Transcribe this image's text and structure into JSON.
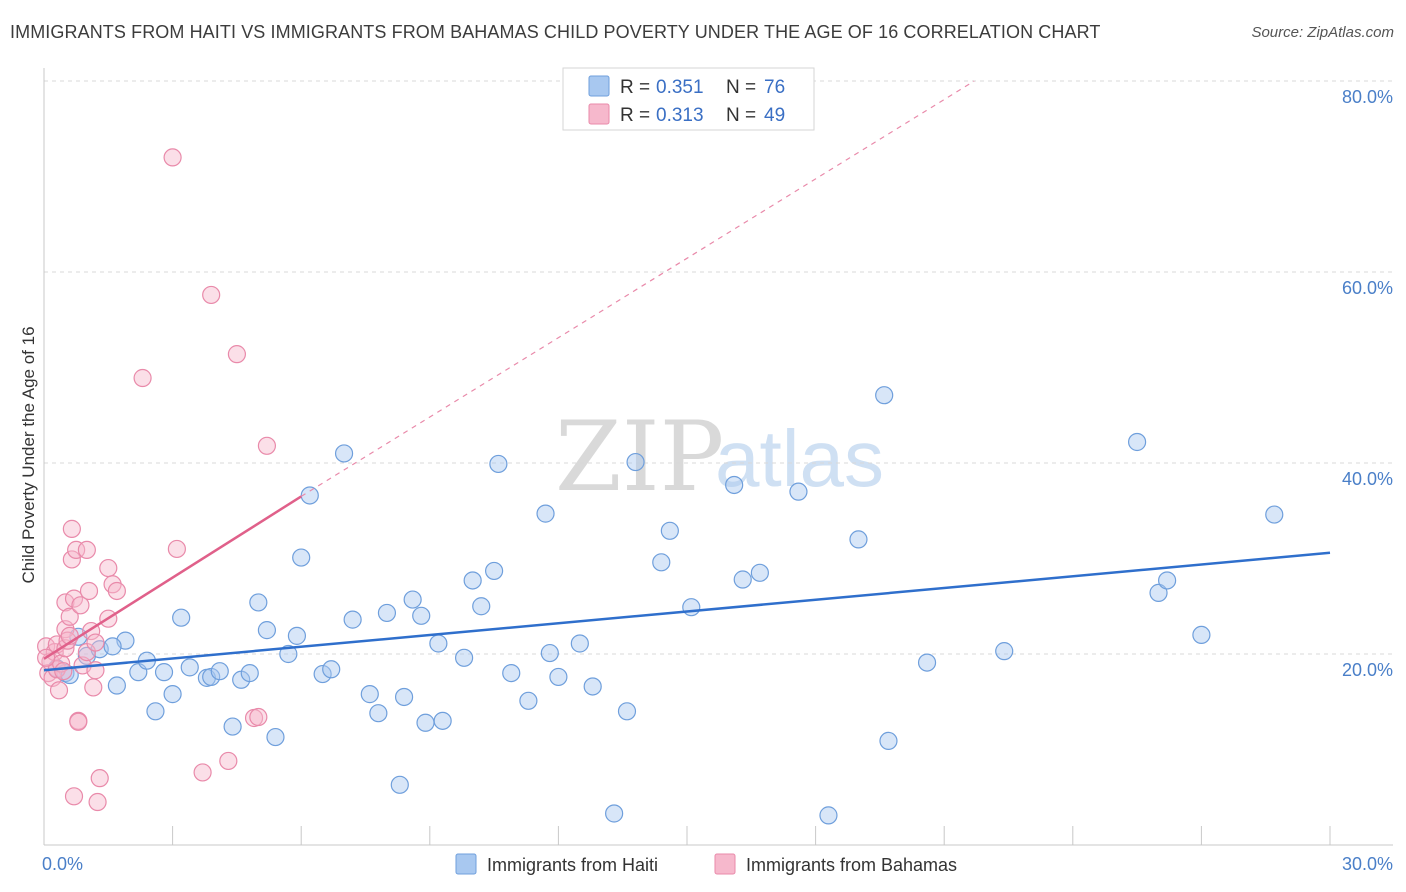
{
  "header": {
    "title": "IMMIGRANTS FROM HAITI VS IMMIGRANTS FROM BAHAMAS CHILD POVERTY UNDER THE AGE OF 16 CORRELATION CHART",
    "source": "Source: ZipAtlas.com"
  },
  "watermark": {
    "zip": "ZIP",
    "atlas": "atlas"
  },
  "legend_box": {
    "r_label": "R =",
    "n_label": "N =",
    "entries": [
      {
        "r": "0.351",
        "n": "76"
      },
      {
        "r": "0.313",
        "n": "49"
      }
    ]
  },
  "colors": {
    "haiti_fill": "#a8c8f0",
    "haiti_stroke": "#6f9fdc",
    "haiti_line": "#2f6fcc",
    "bahamas_fill": "#f6b8cc",
    "bahamas_stroke": "#e98aaa",
    "bahamas_line": "#e0608a",
    "grid": "#d8d8d8",
    "tick_text": "#4a7fc8"
  },
  "chart_data": {
    "type": "scatter",
    "title": "IMMIGRANTS FROM HAITI VS IMMIGRANTS FROM BAHAMAS CHILD POVERTY UNDER THE AGE OF 16 CORRELATION CHART",
    "xlabel": "",
    "ylabel": "Child Poverty Under the Age of 16",
    "xlim": [
      0,
      30
    ],
    "ylim": [
      0,
      82
    ],
    "x_tick_labels": [
      {
        "value": 0,
        "label": "0.0%"
      },
      {
        "value": 30,
        "label": "30.0%"
      }
    ],
    "y_tick_labels": [
      {
        "value": 20,
        "label": "20.0%"
      },
      {
        "value": 40,
        "label": "40.0%"
      },
      {
        "value": 60,
        "label": "60.0%"
      },
      {
        "value": 80,
        "label": "80.0%"
      }
    ],
    "x_minor_ticks": [
      0,
      3,
      6,
      9,
      12,
      15,
      18,
      21,
      24,
      27,
      30
    ],
    "grid": true,
    "legend_position": "bottom-center",
    "series": [
      {
        "name": "Immigrants from Haiti",
        "color": "#a8c8f0",
        "r": 0.351,
        "n": 76,
        "trend": {
          "x": [
            0,
            30
          ],
          "y": [
            18.3,
            30.6
          ]
        },
        "points": [
          [
            0.3,
            18.5
          ],
          [
            0.5,
            18.0
          ],
          [
            0.8,
            21.8
          ],
          [
            1.0,
            19.8
          ],
          [
            1.3,
            20.5
          ],
          [
            1.7,
            16.7
          ],
          [
            1.9,
            21.4
          ],
          [
            2.2,
            18.1
          ],
          [
            2.4,
            19.3
          ],
          [
            2.6,
            14.0
          ],
          [
            2.8,
            18.1
          ],
          [
            3.0,
            15.8
          ],
          [
            3.2,
            23.8
          ],
          [
            3.4,
            18.6
          ],
          [
            3.8,
            17.5
          ],
          [
            3.9,
            17.6
          ],
          [
            4.1,
            18.2
          ],
          [
            4.4,
            12.4
          ],
          [
            4.6,
            17.3
          ],
          [
            4.8,
            18.0
          ],
          [
            5.0,
            25.4
          ],
          [
            5.2,
            22.5
          ],
          [
            5.4,
            11.3
          ],
          [
            5.7,
            20.0
          ],
          [
            5.9,
            21.9
          ],
          [
            6.0,
            30.1
          ],
          [
            6.2,
            36.6
          ],
          [
            6.5,
            17.9
          ],
          [
            6.7,
            18.4
          ],
          [
            7.0,
            41.0
          ],
          [
            7.2,
            23.6
          ],
          [
            7.6,
            15.8
          ],
          [
            7.8,
            13.8
          ],
          [
            8.0,
            24.3
          ],
          [
            8.3,
            6.3
          ],
          [
            8.4,
            15.5
          ],
          [
            8.6,
            25.7
          ],
          [
            8.8,
            24.0
          ],
          [
            8.9,
            12.8
          ],
          [
            9.2,
            21.1
          ],
          [
            9.3,
            13.0
          ],
          [
            9.8,
            19.6
          ],
          [
            10.0,
            27.7
          ],
          [
            10.2,
            25.0
          ],
          [
            10.5,
            28.7
          ],
          [
            10.6,
            39.9
          ],
          [
            10.9,
            18.0
          ],
          [
            11.3,
            15.1
          ],
          [
            11.7,
            34.7
          ],
          [
            11.8,
            20.1
          ],
          [
            12.0,
            17.6
          ],
          [
            12.5,
            21.1
          ],
          [
            12.8,
            16.6
          ],
          [
            13.3,
            3.3
          ],
          [
            13.6,
            14.0
          ],
          [
            13.8,
            40.1
          ],
          [
            14.4,
            29.6
          ],
          [
            14.6,
            32.9
          ],
          [
            15.1,
            24.9
          ],
          [
            16.1,
            37.7
          ],
          [
            16.3,
            27.8
          ],
          [
            16.7,
            28.5
          ],
          [
            17.6,
            37.0
          ],
          [
            18.3,
            3.1
          ],
          [
            19.0,
            32.0
          ],
          [
            19.6,
            47.1
          ],
          [
            19.7,
            10.9
          ],
          [
            20.6,
            19.1
          ],
          [
            22.4,
            20.3
          ],
          [
            25.5,
            42.2
          ],
          [
            26.0,
            26.4
          ],
          [
            26.2,
            27.7
          ],
          [
            27.0,
            22.0
          ],
          [
            28.7,
            34.6
          ],
          [
            0.6,
            17.8
          ],
          [
            1.6,
            20.8
          ]
        ]
      },
      {
        "name": "Immigrants from Bahamas",
        "color": "#f6b8cc",
        "r": 0.313,
        "n": 49,
        "trend": {
          "x": [
            0,
            6.0
          ],
          "y": [
            19.5,
            36.5
          ]
        },
        "trend_extension": {
          "x": [
            6.0,
            21.7
          ],
          "y": [
            36.5,
            80.0
          ]
        },
        "points": [
          [
            0.05,
            20.8
          ],
          [
            0.1,
            18.0
          ],
          [
            0.15,
            19.2
          ],
          [
            0.2,
            17.5
          ],
          [
            0.25,
            20.2
          ],
          [
            0.3,
            21.0
          ],
          [
            0.3,
            18.4
          ],
          [
            0.35,
            16.2
          ],
          [
            0.4,
            19.0
          ],
          [
            0.45,
            18.2
          ],
          [
            0.5,
            22.6
          ],
          [
            0.5,
            20.6
          ],
          [
            0.5,
            25.4
          ],
          [
            0.55,
            21.4
          ],
          [
            0.6,
            23.9
          ],
          [
            0.6,
            21.9
          ],
          [
            0.65,
            29.9
          ],
          [
            0.65,
            33.1
          ],
          [
            0.7,
            25.8
          ],
          [
            0.7,
            5.1
          ],
          [
            0.75,
            30.9
          ],
          [
            0.8,
            13.0
          ],
          [
            0.8,
            12.9
          ],
          [
            0.85,
            25.1
          ],
          [
            0.9,
            18.8
          ],
          [
            1.0,
            20.2
          ],
          [
            1.0,
            30.9
          ],
          [
            1.05,
            26.6
          ],
          [
            1.1,
            22.4
          ],
          [
            1.15,
            16.5
          ],
          [
            1.2,
            18.3
          ],
          [
            1.2,
            21.2
          ],
          [
            1.25,
            4.5
          ],
          [
            1.3,
            7.0
          ],
          [
            1.5,
            29.0
          ],
          [
            1.5,
            23.7
          ],
          [
            1.6,
            27.3
          ],
          [
            1.7,
            26.6
          ],
          [
            2.3,
            48.9
          ],
          [
            3.0,
            72.0
          ],
          [
            3.1,
            31.0
          ],
          [
            3.7,
            7.6
          ],
          [
            3.9,
            57.6
          ],
          [
            4.3,
            8.8
          ],
          [
            4.5,
            51.4
          ],
          [
            4.9,
            13.3
          ],
          [
            5.0,
            13.4
          ],
          [
            5.2,
            41.8
          ],
          [
            0.05,
            19.6
          ]
        ]
      }
    ]
  },
  "bottom_legend": {
    "items": [
      {
        "label": "Immigrants from Haiti"
      },
      {
        "label": "Immigrants from Bahamas"
      }
    ]
  }
}
